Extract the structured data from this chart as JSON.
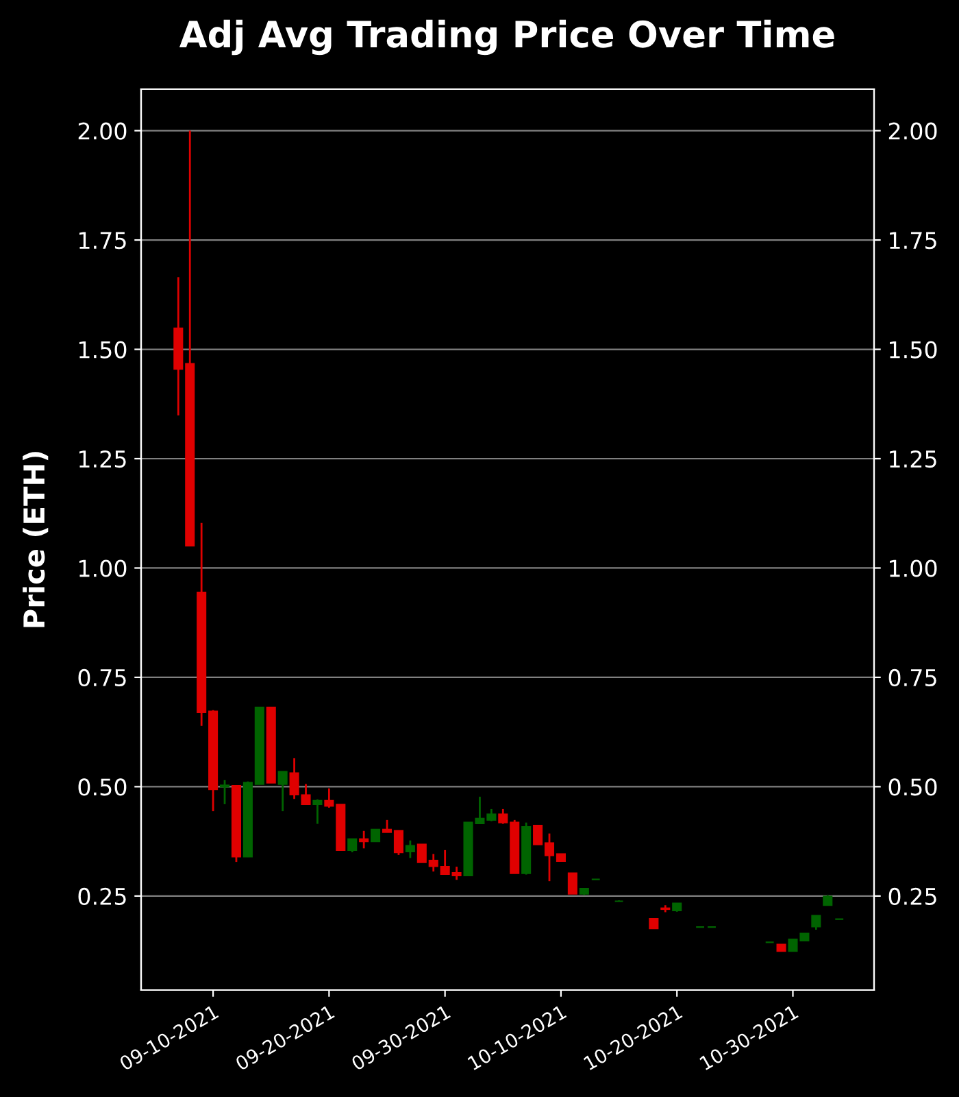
{
  "chart_data": {
    "type": "candlestick",
    "title": "Adj Avg Trading Price Over Time",
    "ylabel": "Price (ETH)",
    "x": [
      "2021-09-07",
      "2021-09-08",
      "2021-09-09",
      "2021-09-10",
      "2021-09-11",
      "2021-09-12",
      "2021-09-13",
      "2021-09-14",
      "2021-09-15",
      "2021-09-16",
      "2021-09-17",
      "2021-09-18",
      "2021-09-19",
      "2021-09-20",
      "2021-09-21",
      "2021-09-22",
      "2021-09-23",
      "2021-09-24",
      "2021-09-25",
      "2021-09-26",
      "2021-09-27",
      "2021-09-28",
      "2021-09-29",
      "2021-09-30",
      "2021-10-01",
      "2021-10-02",
      "2021-10-03",
      "2021-10-04",
      "2021-10-05",
      "2021-10-06",
      "2021-10-07",
      "2021-10-08",
      "2021-10-09",
      "2021-10-10",
      "2021-10-11",
      "2021-10-12",
      "2021-10-13",
      "2021-10-15",
      "2021-10-18",
      "2021-10-19",
      "2021-10-20",
      "2021-10-22",
      "2021-10-23",
      "2021-10-28",
      "2021-10-29",
      "2021-10-30",
      "2021-10-31",
      "2021-11-01",
      "2021-11-02",
      "2021-11-03"
    ],
    "ohlc": [
      [
        1.548,
        1.665,
        1.349,
        1.455
      ],
      [
        1.467,
        2.0,
        1.051,
        1.051
      ],
      [
        0.944,
        1.103,
        0.639,
        0.67
      ],
      [
        0.672,
        0.675,
        0.444,
        0.494
      ],
      [
        0.5,
        0.515,
        0.46,
        0.503
      ],
      [
        0.502,
        0.503,
        0.328,
        0.34
      ],
      [
        0.34,
        0.512,
        0.339,
        0.509
      ],
      [
        0.506,
        0.681,
        0.506,
        0.681
      ],
      [
        0.681,
        0.681,
        0.509,
        0.509
      ],
      [
        0.506,
        0.534,
        0.444,
        0.534
      ],
      [
        0.531,
        0.565,
        0.472,
        0.482
      ],
      [
        0.481,
        0.506,
        0.459,
        0.46
      ],
      [
        0.46,
        0.471,
        0.415,
        0.468
      ],
      [
        0.468,
        0.496,
        0.452,
        0.456
      ],
      [
        0.459,
        0.459,
        0.355,
        0.355
      ],
      [
        0.355,
        0.38,
        0.35,
        0.38
      ],
      [
        0.38,
        0.399,
        0.359,
        0.375
      ],
      [
        0.375,
        0.402,
        0.375,
        0.402
      ],
      [
        0.402,
        0.424,
        0.396,
        0.396
      ],
      [
        0.399,
        0.399,
        0.344,
        0.35
      ],
      [
        0.352,
        0.377,
        0.337,
        0.365
      ],
      [
        0.368,
        0.368,
        0.327,
        0.327
      ],
      [
        0.331,
        0.346,
        0.306,
        0.318
      ],
      [
        0.317,
        0.355,
        0.3,
        0.3
      ],
      [
        0.303,
        0.317,
        0.287,
        0.297
      ],
      [
        0.297,
        0.418,
        0.297,
        0.418
      ],
      [
        0.416,
        0.477,
        0.416,
        0.427
      ],
      [
        0.424,
        0.449,
        0.421,
        0.437
      ],
      [
        0.437,
        0.449,
        0.415,
        0.418
      ],
      [
        0.418,
        0.424,
        0.302,
        0.302
      ],
      [
        0.302,
        0.418,
        0.299,
        0.408
      ],
      [
        0.411,
        0.411,
        0.368,
        0.368
      ],
      [
        0.371,
        0.393,
        0.284,
        0.343
      ],
      [
        0.346,
        0.346,
        0.33,
        0.33
      ],
      [
        0.302,
        0.302,
        0.255,
        0.255
      ],
      [
        0.255,
        0.267,
        0.252,
        0.267
      ],
      [
        0.288,
        0.288,
        0.288,
        0.288
      ],
      [
        0.238,
        0.24,
        0.238,
        0.238
      ],
      [
        0.198,
        0.198,
        0.176,
        0.176
      ],
      [
        0.222,
        0.229,
        0.213,
        0.22
      ],
      [
        0.217,
        0.233,
        0.214,
        0.233
      ],
      [
        0.179,
        0.179,
        0.179,
        0.179
      ],
      [
        0.179,
        0.179,
        0.179,
        0.179
      ],
      [
        0.144,
        0.144,
        0.144,
        0.144
      ],
      [
        0.139,
        0.139,
        0.124,
        0.124
      ],
      [
        0.124,
        0.151,
        0.124,
        0.151
      ],
      [
        0.148,
        0.164,
        0.148,
        0.164
      ],
      [
        0.18,
        0.205,
        0.173,
        0.205
      ],
      [
        0.229,
        0.252,
        0.229,
        0.249
      ],
      [
        0.197,
        0.197,
        0.197,
        0.197
      ]
    ],
    "colors": [
      "#e00000",
      "#e00000",
      "#e00000",
      "#e00000",
      "#006400",
      "#e00000",
      "#006400",
      "#006400",
      "#e00000",
      "#006400",
      "#e00000",
      "#e00000",
      "#006400",
      "#e00000",
      "#e00000",
      "#006400",
      "#e00000",
      "#006400",
      "#e00000",
      "#e00000",
      "#006400",
      "#e00000",
      "#e00000",
      "#e00000",
      "#e00000",
      "#006400",
      "#006400",
      "#006400",
      "#e00000",
      "#e00000",
      "#006400",
      "#e00000",
      "#e00000",
      "#e00000",
      "#e00000",
      "#006400",
      "#006400",
      "#006400",
      "#e00000",
      "#e00000",
      "#006400",
      "#006400",
      "#006400",
      "#006400",
      "#e00000",
      "#006400",
      "#006400",
      "#006400",
      "#006400",
      "#006400"
    ],
    "xlim": [
      "2021-09-03T19:00",
      "2021-11-06T00:00"
    ],
    "xticks": [
      {
        "value": "2021-09-10",
        "label": "09-10-2021"
      },
      {
        "value": "2021-09-20",
        "label": "09-20-2021"
      },
      {
        "value": "2021-09-30",
        "label": "09-30-2021"
      },
      {
        "value": "2021-10-10",
        "label": "10-10-2021"
      },
      {
        "value": "2021-10-20",
        "label": "10-20-2021"
      },
      {
        "value": "2021-10-30",
        "label": "10-30-2021"
      }
    ],
    "ylim": [
      0.035,
      2.095
    ],
    "yticks": [
      {
        "value": 0.25,
        "label": "0.25"
      },
      {
        "value": 0.5,
        "label": "0.50"
      },
      {
        "value": 0.75,
        "label": "0.75"
      },
      {
        "value": 1.0,
        "label": "1.00"
      },
      {
        "value": 1.25,
        "label": "1.25"
      },
      {
        "value": 1.5,
        "label": "1.50"
      },
      {
        "value": 1.75,
        "label": "1.75"
      },
      {
        "value": 2.0,
        "label": "2.00"
      }
    ],
    "y2lim": [
      0.035,
      2.095
    ],
    "y2ticks": [
      {
        "value": 0.25,
        "label": "0.25"
      },
      {
        "value": 0.5,
        "label": "0.50"
      },
      {
        "value": 0.75,
        "label": "0.75"
      },
      {
        "value": 1.0,
        "label": "1.00"
      },
      {
        "value": 1.25,
        "label": "1.25"
      },
      {
        "value": 1.5,
        "label": "1.50"
      },
      {
        "value": 1.75,
        "label": "1.75"
      },
      {
        "value": 2.0,
        "label": "2.00"
      }
    ],
    "grid": "y"
  }
}
